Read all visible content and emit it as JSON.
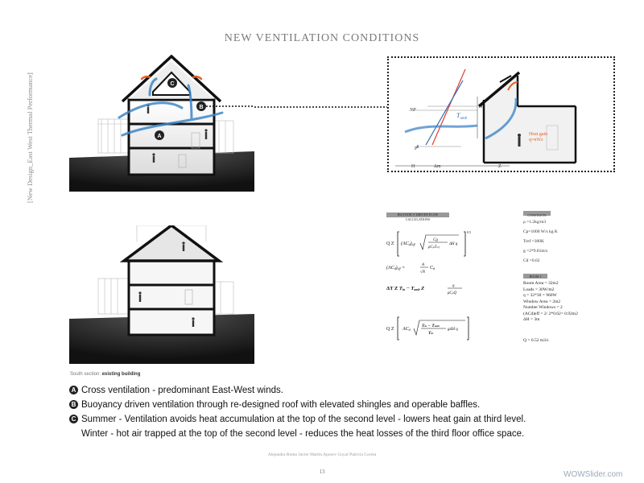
{
  "page": {
    "title": "NEW VENTILATION CONDITIONS",
    "side_label": "[New Design_East West Thermal Performance]",
    "section_label_prefix": "South section:",
    "section_label_emph": "existing building",
    "authors": "Alejandra Romo  Javier Martin  Apoorv Goyal  Patricia Correa",
    "page_number": "13",
    "watermark": "WOWSlider.com"
  },
  "diagram_top": {
    "badge_a": "A",
    "badge_b": "B",
    "badge_c": "C"
  },
  "detail": {
    "np_label": "NP",
    "h_label": "H",
    "tamb_label": "T",
    "tamb_sub": "amb",
    "heat_gain_label": "Heat gain",
    "heat_gain_value": "q=nWz",
    "p_label": "P",
    "h_arrow": "H",
    "ams": "Δm",
    "z_label": "Z"
  },
  "calc": {
    "heading": "BUOYANCY DRIVEN FLOW CALCULATIONS",
    "exp": "0.5",
    "eq1": "Q Z [(AC_d)eff √(Cg ΔH q / ρCpTref)]",
    "eq2": "(AC_d)eff = A/√N C_d",
    "eq3": "ΔT Z Tin − Tamb Z q / ρCpQ",
    "eq4": "Q Z [AC_d √((Tin − Tamb)/Tin gΔH q)]"
  },
  "constants": {
    "heading": "CONSTANTS",
    "items": [
      "ρ =1.2kg/m3",
      "Cp=1000 W/s kg K",
      "Tref =300K",
      "g =2*9.81m/s",
      "Cd =0.62"
    ]
  },
  "room": {
    "heading": "ROOM 3",
    "lines": [
      "Room Area = 32m2",
      "Loads = 30W/m2",
      "q = 32*30  = 960W",
      "Window Area = 2m2",
      "Number Windows = 2",
      "(ACd)eff = 2/ 2*0.62= 0.92m2",
      "ΔH = 3m"
    ],
    "result": "Q = 0.52 m3/s"
  },
  "legend": {
    "a_badge": "A",
    "a_text": "Cross ventilation - predominant East-West winds.",
    "b_badge": "B",
    "b_text": "Buoyancy driven ventilation through re-designed roof with elevated shingles and operable baffles.",
    "c_badge": "C",
    "c_text": "Summer - Ventilation avoids heat accumulation at the top of the second level - lowers heat gain at third level.",
    "c_text2": "Winter - hot air trapped  at the top of the second level - reduces the heat losses of the third floor office space."
  },
  "colors": {
    "wind_arrow": "#3f86c8",
    "heat_arrow": "#e4612b",
    "red_line": "#e23b2b",
    "blue_line": "#2f6db5"
  }
}
